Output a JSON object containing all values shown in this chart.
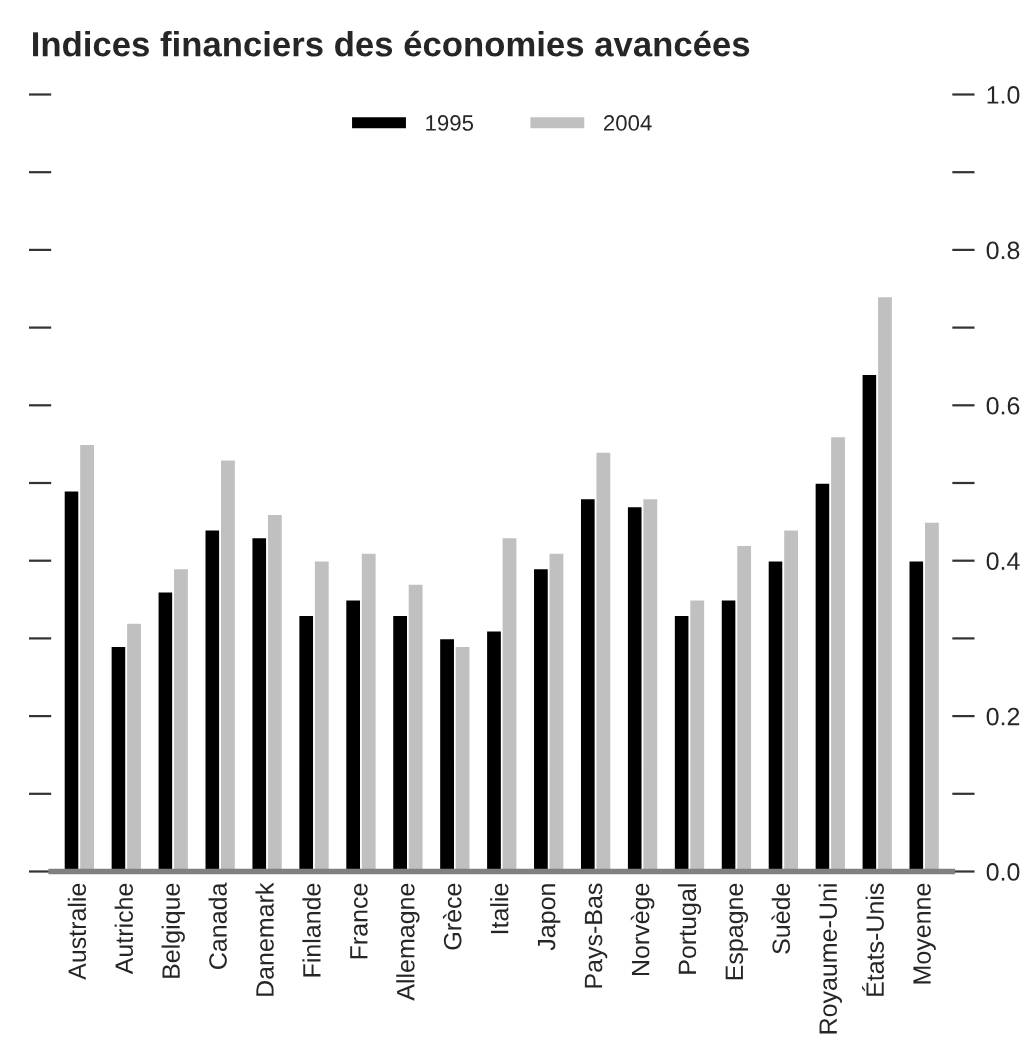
{
  "chart_data": {
    "type": "bar",
    "title": "Indices financiers des économies avancées",
    "categories": [
      "Australie",
      "Autriche",
      "Belgique",
      "Canada",
      "Danemark",
      "Finlande",
      "France",
      "Allemagne",
      "Grèce",
      "Italie",
      "Japon",
      "Pays-Bas",
      "Norvège",
      "Portugal",
      "Espagne",
      "Suède",
      "Royaume-Uni",
      "États-Unis",
      "Moyenne"
    ],
    "series": [
      {
        "name": "1995",
        "color": "#000000",
        "values": [
          0.49,
          0.29,
          0.36,
          0.44,
          0.43,
          0.33,
          0.35,
          0.33,
          0.3,
          0.31,
          0.39,
          0.48,
          0.47,
          0.33,
          0.35,
          0.4,
          0.5,
          0.64,
          0.4
        ]
      },
      {
        "name": "2004",
        "color": "#c0c0c0",
        "values": [
          0.55,
          0.32,
          0.39,
          0.53,
          0.46,
          0.4,
          0.41,
          0.37,
          0.29,
          0.43,
          0.41,
          0.54,
          0.48,
          0.35,
          0.42,
          0.44,
          0.56,
          0.74,
          0.45
        ]
      }
    ],
    "ylim": [
      0,
      1.0
    ],
    "yticks": [
      {
        "value": 0,
        "label": "0.0"
      },
      {
        "value": 0.1,
        "label": null
      },
      {
        "value": 0.2,
        "label": "0.2"
      },
      {
        "value": 0.3,
        "label": null
      },
      {
        "value": 0.4,
        "label": "0.4"
      },
      {
        "value": 0.5,
        "label": null
      },
      {
        "value": 0.6,
        "label": "0.6"
      },
      {
        "value": 0.7,
        "label": null
      },
      {
        "value": 0.8,
        "label": "0.8"
      },
      {
        "value": 0.9,
        "label": null
      },
      {
        "value": 1.0,
        "label": "1.0"
      }
    ],
    "grid": false,
    "legend": "top"
  }
}
